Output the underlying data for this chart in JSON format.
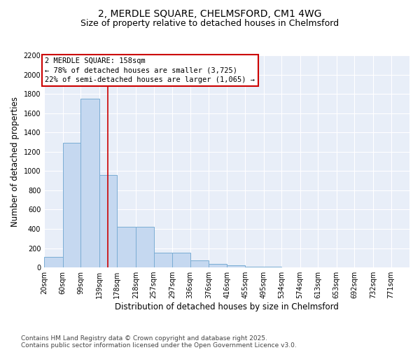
{
  "title_line1": "2, MERDLE SQUARE, CHELMSFORD, CM1 4WG",
  "title_line2": "Size of property relative to detached houses in Chelmsford",
  "xlabel": "Distribution of detached houses by size in Chelmsford",
  "ylabel": "Number of detached properties",
  "bar_color": "#c5d8f0",
  "bar_edge_color": "#7aadd4",
  "background_color": "#e8eef8",
  "grid_color": "#ffffff",
  "bins": [
    20,
    60,
    99,
    139,
    178,
    218,
    257,
    297,
    336,
    376,
    416,
    455,
    495,
    534,
    574,
    613,
    653,
    692,
    732,
    771,
    811
  ],
  "counts": [
    110,
    1290,
    1750,
    960,
    420,
    420,
    150,
    150,
    75,
    40,
    20,
    10,
    5,
    3,
    2,
    1,
    1,
    0,
    0,
    0
  ],
  "vline_x": 158,
  "vline_color": "#cc0000",
  "annotation_text": "2 MERDLE SQUARE: 158sqm\n← 78% of detached houses are smaller (3,725)\n22% of semi-detached houses are larger (1,065) →",
  "annotation_box_color": "#cc0000",
  "ylim": [
    0,
    2200
  ],
  "yticks": [
    0,
    200,
    400,
    600,
    800,
    1000,
    1200,
    1400,
    1600,
    1800,
    2000,
    2200
  ],
  "footnote_line1": "Contains HM Land Registry data © Crown copyright and database right 2025.",
  "footnote_line2": "Contains public sector information licensed under the Open Government Licence v3.0.",
  "title_fontsize": 10,
  "subtitle_fontsize": 9,
  "axis_label_fontsize": 8.5,
  "tick_fontsize": 7,
  "footnote_fontsize": 6.5,
  "annotation_fontsize": 7.5
}
